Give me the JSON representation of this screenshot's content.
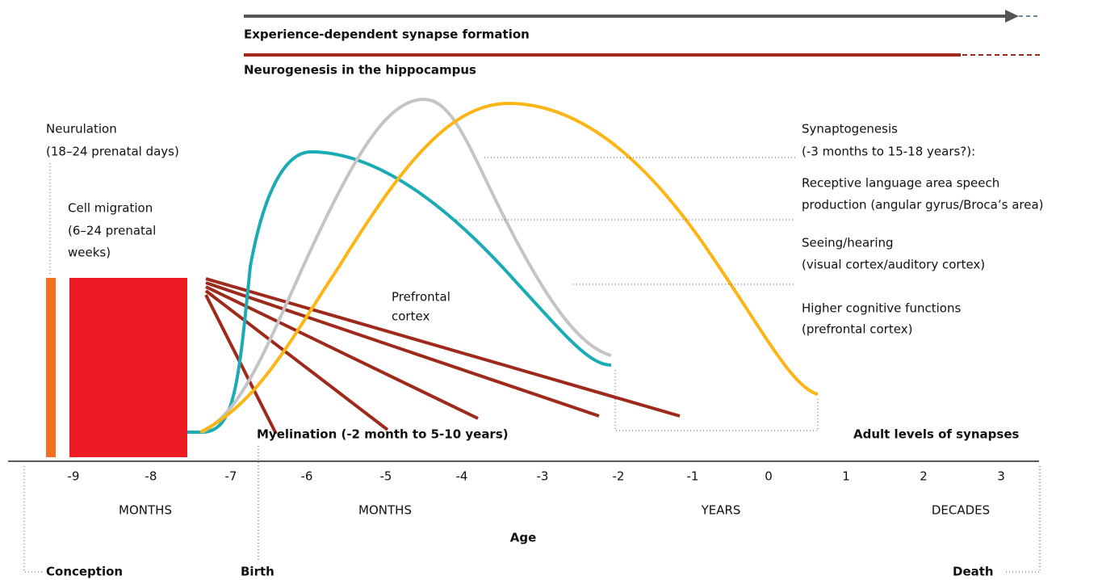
{
  "header": {
    "bar1": "Experience-dependent synapse formation",
    "bar2": "Neurogenesis in the hippocampus"
  },
  "neurulation": [
    "Neurulation",
    "(18–24 prenatal  days)"
  ],
  "cell_migration": [
    "Cell migration",
    "(6–24 prenatal",
    "weeks)"
  ],
  "prefrontal": [
    "Prefrontal",
    "cortex"
  ],
  "synaptogenesis": [
    "Synaptogenesis",
    "(-3 months to 15-18 years?):"
  ],
  "curves": [
    [
      "Receptive language area speech",
      "production (angular gyrus/Broca’s area)"
    ],
    [
      "Seeing/hearing",
      "(visual cortex/auditory cortex)"
    ],
    [
      "Higher cognitive functions",
      "(prefrontal cortex)"
    ]
  ],
  "myelination": "Myelination (-2 month to 5-10 years)",
  "adult": "Adult levels of synapses",
  "axis": {
    "ticks": [
      "-9",
      "-8",
      "-7",
      "-6",
      "-5",
      "-4",
      "-3",
      "-2",
      "-1",
      "0",
      "1",
      "2",
      "3"
    ],
    "units": [
      "MONTHS",
      "MONTHS",
      "YEARS",
      "DECADES"
    ],
    "label": "Age"
  },
  "events": {
    "conception": "Conception",
    "birth": "Birth",
    "death": "Death"
  }
}
